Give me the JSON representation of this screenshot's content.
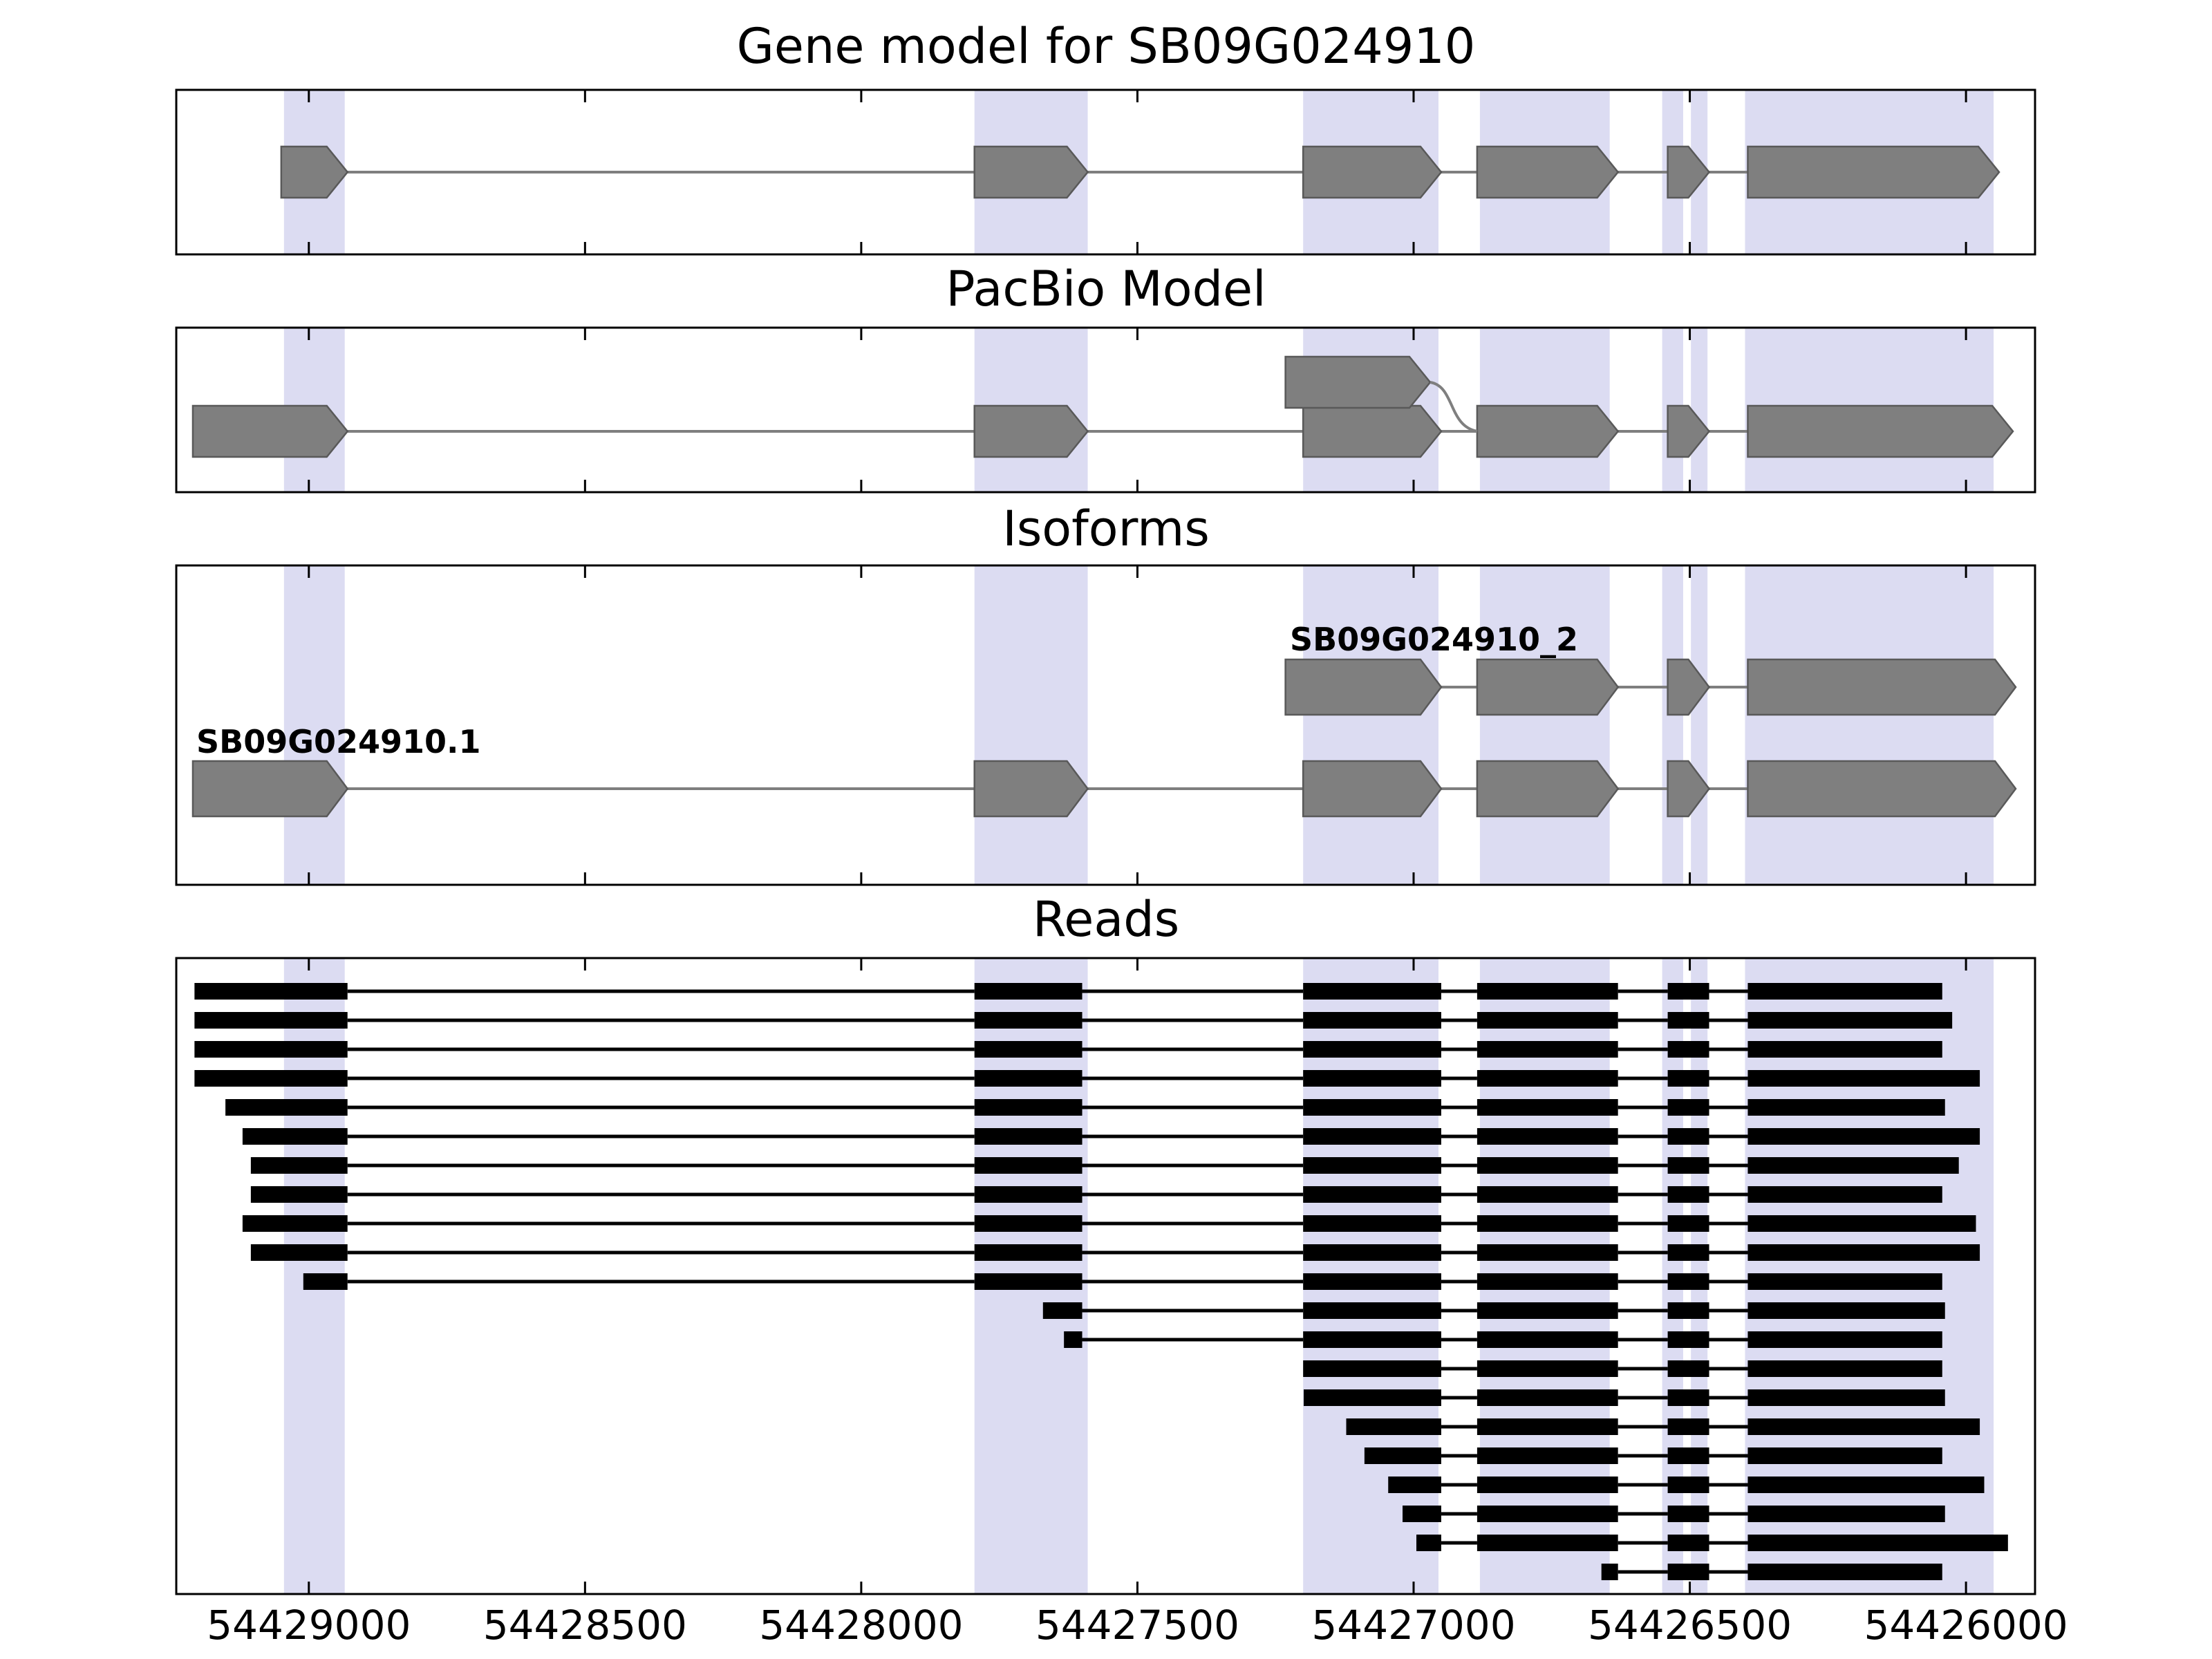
{
  "figure": {
    "colors": {
      "band": "#dcdcf2",
      "exon_fill": "#7f7f7f",
      "exon_stroke": "#595959",
      "intron": "#7f7f7f",
      "read": "#000000",
      "frame": "#000000",
      "text": "#000000",
      "background": "#ffffff"
    }
  },
  "chart_data": {
    "type": "genomic-tracks",
    "xaxis": {
      "left_coord": 54429240,
      "right_coord": 54425875,
      "direction": "decreasing",
      "ticks": [
        54429000,
        54428500,
        54428000,
        54427500,
        54427000,
        54426500,
        54426000
      ],
      "tick_labels": [
        "54429000",
        "54428500",
        "54428000",
        "54427500",
        "54427000",
        "54426500",
        "54426000"
      ]
    },
    "highlight_bands": [
      [
        54429045,
        54428935
      ],
      [
        54427795,
        54427590
      ],
      [
        54427200,
        54426955
      ],
      [
        54426880,
        54426645
      ],
      [
        54426550,
        54426512
      ],
      [
        54426498,
        54426468
      ],
      [
        54426400,
        54425950
      ]
    ],
    "panels": [
      {
        "name": "gene-model",
        "title": "Gene model for SB09G024910",
        "transcripts": [
          {
            "exons": [
              [
                54429050,
                54428930
              ],
              [
                54427795,
                54427590
              ],
              [
                54427200,
                54426950
              ],
              [
                54426885,
                54426630
              ],
              [
                54426540,
                54426465
              ],
              [
                54426395,
                54425940
              ]
            ]
          }
        ]
      },
      {
        "name": "pacbio-model",
        "title": "PacBio Model",
        "transcripts": [
          {
            "exons": [
              [
                54429210,
                54428930
              ],
              [
                54427795,
                54427590
              ],
              [
                54427200,
                54426950
              ],
              [
                54426885,
                54426630
              ],
              [
                54426540,
                54426465
              ],
              [
                54426395,
                54425915
              ]
            ]
          }
        ],
        "alt_first_exon": {
          "exons": [
            [
              54427232,
              54426970
            ]
          ],
          "connects_to": 54426885
        }
      },
      {
        "name": "isoforms",
        "title": "Isoforms",
        "transcripts": [
          {
            "label": "SB09G024910_2",
            "exons": [
              [
                54427232,
                54426950
              ],
              [
                54426885,
                54426630
              ],
              [
                54426540,
                54426465
              ],
              [
                54426395,
                54425910
              ]
            ]
          },
          {
            "label": "SB09G024910.1",
            "exons": [
              [
                54429210,
                54428930
              ],
              [
                54427795,
                54427590
              ],
              [
                54427200,
                54426950
              ],
              [
                54426885,
                54426630
              ],
              [
                54426540,
                54426465
              ],
              [
                54426395,
                54425910
              ]
            ]
          }
        ]
      },
      {
        "name": "reads",
        "title": "Reads",
        "exon_blocks": [
          [
            54429210,
            54428930
          ],
          [
            54427795,
            54427600
          ],
          [
            54427200,
            54426950
          ],
          [
            54426885,
            54426630
          ],
          [
            54426540,
            54426465
          ],
          [
            54426395,
            54425900
          ]
        ],
        "reads": [
          [
            54429207,
            54426043
          ],
          [
            54429207,
            54426025
          ],
          [
            54429207,
            54426043
          ],
          [
            54429207,
            54425975
          ],
          [
            54429151,
            54426038
          ],
          [
            54429120,
            54425975
          ],
          [
            54429105,
            54426013
          ],
          [
            54429105,
            54426043
          ],
          [
            54429120,
            54425982
          ],
          [
            54429105,
            54425975
          ],
          [
            54429010,
            54426043
          ],
          [
            54427671,
            54426038
          ],
          [
            54427633,
            54426043
          ],
          [
            54427200,
            54426043
          ],
          [
            54427199,
            54426038
          ],
          [
            54427122,
            54425975
          ],
          [
            54427089,
            54426043
          ],
          [
            54427046,
            54425967
          ],
          [
            54427020,
            54426038
          ],
          [
            54426995,
            54425924
          ],
          [
            54426660,
            54426043
          ]
        ]
      }
    ]
  }
}
